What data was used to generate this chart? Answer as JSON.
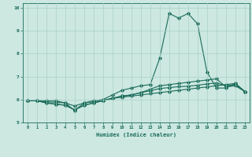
{
  "title": "",
  "xlabel": "Humidex (Indice chaleur)",
  "ylabel": "",
  "bg_color": "#cce8e0",
  "line_color": "#1a6b5a",
  "grid_color": "#aad0c8",
  "xlim": [
    -0.5,
    23.5
  ],
  "ylim": [
    5,
    10.2
  ],
  "yticks": [
    5,
    6,
    7,
    8,
    9,
    10
  ],
  "xticks": [
    0,
    1,
    2,
    3,
    4,
    5,
    6,
    7,
    8,
    9,
    10,
    11,
    12,
    13,
    14,
    15,
    16,
    17,
    18,
    19,
    20,
    21,
    22,
    23
  ],
  "series": [
    [
      5.95,
      5.95,
      5.95,
      5.95,
      5.85,
      5.52,
      5.85,
      5.95,
      6.0,
      6.2,
      6.4,
      6.5,
      6.6,
      6.65,
      7.8,
      9.75,
      9.55,
      9.75,
      9.3,
      7.2,
      6.5,
      6.5,
      6.7,
      6.35
    ],
    [
      5.95,
      5.95,
      5.85,
      5.8,
      5.75,
      5.55,
      5.75,
      5.85,
      5.95,
      6.05,
      6.15,
      6.2,
      6.3,
      6.45,
      6.6,
      6.65,
      6.7,
      6.75,
      6.8,
      6.85,
      6.9,
      6.55,
      6.6,
      6.35
    ],
    [
      5.95,
      5.95,
      5.85,
      5.8,
      5.75,
      5.55,
      5.75,
      5.85,
      5.95,
      6.05,
      6.1,
      6.15,
      6.2,
      6.25,
      6.3,
      6.35,
      6.4,
      6.45,
      6.5,
      6.55,
      6.6,
      6.65,
      6.7,
      6.35
    ],
    [
      5.95,
      5.95,
      5.9,
      5.88,
      5.85,
      5.72,
      5.85,
      5.9,
      5.97,
      6.05,
      6.15,
      6.2,
      6.3,
      6.38,
      6.48,
      6.52,
      6.56,
      6.58,
      6.62,
      6.68,
      6.72,
      6.6,
      6.65,
      6.35
    ]
  ]
}
